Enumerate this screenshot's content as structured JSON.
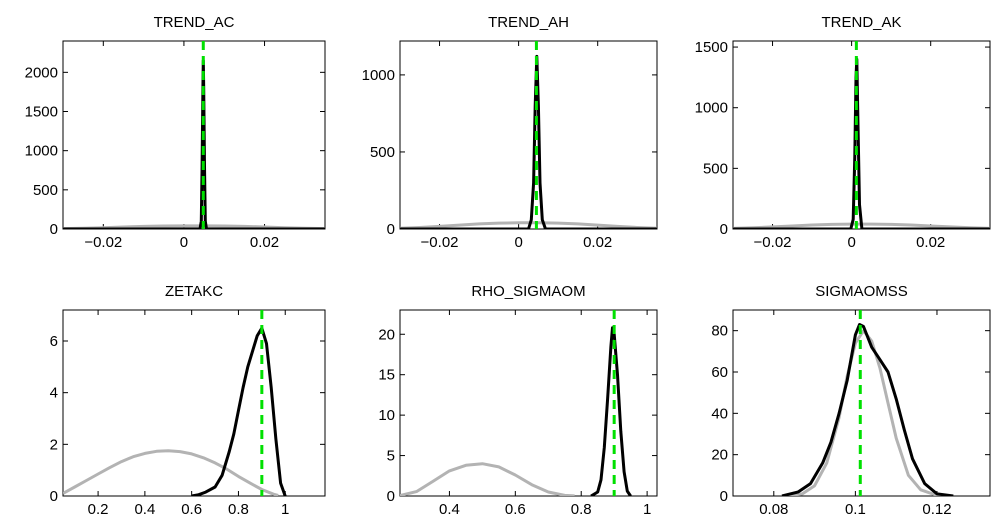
{
  "chart_data": [
    {
      "type": "line",
      "title": "TREND_AC",
      "xlim": [
        -0.03,
        0.035
      ],
      "ylim": [
        0,
        2400
      ],
      "xticks": [
        {
          "v": -0.02,
          "label": "−0.02"
        },
        {
          "v": 0,
          "label": "0"
        },
        {
          "v": 0.02,
          "label": "0.02"
        }
      ],
      "yticks": [
        {
          "v": 0,
          "label": "0"
        },
        {
          "v": 500,
          "label": "500"
        },
        {
          "v": 1000,
          "label": "1000"
        },
        {
          "v": 1500,
          "label": "1500"
        },
        {
          "v": 2000,
          "label": "2000"
        }
      ],
      "mode_line": 0.0048,
      "prior": {
        "color": "#b3b3b3",
        "x": [
          -0.03,
          -0.025,
          -0.02,
          -0.015,
          -0.01,
          -0.005,
          0,
          0.005,
          0.01,
          0.015,
          0.02,
          0.025,
          0.03,
          0.035
        ],
        "y": [
          5,
          10,
          17,
          25,
          33,
          38,
          40,
          40,
          38,
          33,
          25,
          17,
          10,
          5
        ]
      },
      "posterior": {
        "color": "#000000",
        "x": [
          -0.03,
          0.004,
          0.0043,
          0.0045,
          0.0047,
          0.0048,
          0.0049,
          0.0051,
          0.0053,
          0.0056,
          0.035
        ],
        "y": [
          0,
          0,
          100,
          800,
          1800,
          2150,
          1800,
          800,
          100,
          0,
          0
        ]
      }
    },
    {
      "type": "line",
      "title": "TREND_AH",
      "xlim": [
        -0.03,
        0.035
      ],
      "ylim": [
        0,
        1220
      ],
      "xticks": [
        {
          "v": -0.02,
          "label": "−0.02"
        },
        {
          "v": 0,
          "label": "0"
        },
        {
          "v": 0.02,
          "label": "0.02"
        }
      ],
      "yticks": [
        {
          "v": 0,
          "label": "0"
        },
        {
          "v": 500,
          "label": "500"
        },
        {
          "v": 1000,
          "label": "1000"
        }
      ],
      "mode_line": 0.0045,
      "prior": {
        "color": "#b3b3b3",
        "x": [
          -0.03,
          -0.025,
          -0.02,
          -0.015,
          -0.01,
          -0.005,
          0,
          0.005,
          0.01,
          0.015,
          0.02,
          0.025,
          0.03,
          0.035
        ],
        "y": [
          5,
          10,
          17,
          25,
          33,
          38,
          40,
          40,
          38,
          33,
          25,
          17,
          10,
          5
        ]
      },
      "posterior": {
        "color": "#000000",
        "x": [
          -0.03,
          0.0025,
          0.0032,
          0.0038,
          0.0042,
          0.0046,
          0.005,
          0.0054,
          0.006,
          0.0068,
          0.035
        ],
        "y": [
          0,
          0,
          60,
          300,
          800,
          1120,
          800,
          300,
          60,
          0,
          0
        ]
      }
    },
    {
      "type": "line",
      "title": "TREND_AK",
      "xlim": [
        -0.03,
        0.035
      ],
      "ylim": [
        0,
        1550
      ],
      "xticks": [
        {
          "v": -0.02,
          "label": "−0.02"
        },
        {
          "v": 0,
          "label": "0"
        },
        {
          "v": 0.02,
          "label": "0.02"
        }
      ],
      "yticks": [
        {
          "v": 0,
          "label": "0"
        },
        {
          "v": 500,
          "label": "500"
        },
        {
          "v": 1000,
          "label": "1000"
        },
        {
          "v": 1500,
          "label": "1500"
        }
      ],
      "mode_line": 0.0012,
      "prior": {
        "color": "#b3b3b3",
        "x": [
          -0.03,
          -0.025,
          -0.02,
          -0.015,
          -0.01,
          -0.005,
          0,
          0.005,
          0.01,
          0.015,
          0.02,
          0.025,
          0.03,
          0.035
        ],
        "y": [
          5,
          10,
          17,
          25,
          33,
          38,
          40,
          40,
          38,
          33,
          25,
          17,
          10,
          5
        ]
      },
      "posterior": {
        "color": "#000000",
        "x": [
          -0.03,
          -0.0002,
          0.0004,
          0.0008,
          0.0011,
          0.0013,
          0.0016,
          0.002,
          0.0026,
          0.035
        ],
        "y": [
          0,
          0,
          80,
          600,
          1250,
          1400,
          900,
          200,
          0,
          0
        ]
      }
    },
    {
      "type": "line",
      "title": "ZETAKC",
      "xlim": [
        0.05,
        1.17
      ],
      "ylim": [
        0,
        7.2
      ],
      "xticks": [
        {
          "v": 0.2,
          "label": "0.2"
        },
        {
          "v": 0.4,
          "label": "0.4"
        },
        {
          "v": 0.6,
          "label": "0.6"
        },
        {
          "v": 0.8,
          "label": "0.8"
        },
        {
          "v": 1,
          "label": "1"
        }
      ],
      "yticks": [
        {
          "v": 0,
          "label": "0"
        },
        {
          "v": 2,
          "label": "2"
        },
        {
          "v": 4,
          "label": "4"
        },
        {
          "v": 6,
          "label": "6"
        }
      ],
      "mode_line": 0.9,
      "prior": {
        "color": "#b3b3b3",
        "x": [
          0.05,
          0.1,
          0.15,
          0.2,
          0.25,
          0.3,
          0.35,
          0.4,
          0.45,
          0.5,
          0.55,
          0.6,
          0.65,
          0.7,
          0.75,
          0.8,
          0.85,
          0.9,
          0.95,
          0.97
        ],
        "y": [
          0.1,
          0.35,
          0.6,
          0.85,
          1.1,
          1.33,
          1.52,
          1.65,
          1.73,
          1.75,
          1.72,
          1.63,
          1.48,
          1.28,
          1.04,
          0.76,
          0.5,
          0.25,
          0.07,
          0.02
        ]
      },
      "posterior": {
        "color": "#000000",
        "x": [
          0.6,
          0.63,
          0.66,
          0.7,
          0.73,
          0.76,
          0.78,
          0.8,
          0.82,
          0.84,
          0.86,
          0.88,
          0.9,
          0.92,
          0.94,
          0.96,
          0.98,
          1.0
        ],
        "y": [
          0,
          0.05,
          0.15,
          0.35,
          0.8,
          1.7,
          2.4,
          3.3,
          4.2,
          5.0,
          5.6,
          6.2,
          6.5,
          5.9,
          4.2,
          2.2,
          0.5,
          0
        ]
      }
    },
    {
      "type": "line",
      "title": "RHO_SIGMAOM",
      "xlim": [
        0.25,
        1.03
      ],
      "ylim": [
        0,
        23
      ],
      "xticks": [
        {
          "v": 0.4,
          "label": "0.4"
        },
        {
          "v": 0.6,
          "label": "0.6"
        },
        {
          "v": 0.8,
          "label": "0.8"
        },
        {
          "v": 1,
          "label": "1"
        }
      ],
      "yticks": [
        {
          "v": 0,
          "label": "0"
        },
        {
          "v": 5,
          "label": "5"
        },
        {
          "v": 10,
          "label": "10"
        },
        {
          "v": 15,
          "label": "15"
        },
        {
          "v": 20,
          "label": "20"
        }
      ],
      "mode_line": 0.9,
      "prior": {
        "color": "#b3b3b3",
        "x": [
          0.25,
          0.3,
          0.35,
          0.4,
          0.45,
          0.5,
          0.55,
          0.6,
          0.65,
          0.7,
          0.75,
          0.78
        ],
        "y": [
          0.05,
          0.55,
          1.8,
          3.1,
          3.8,
          4.0,
          3.6,
          2.6,
          1.4,
          0.5,
          0.08,
          0.01
        ]
      },
      "posterior": {
        "color": "#000000",
        "x": [
          0.83,
          0.85,
          0.86,
          0.87,
          0.88,
          0.89,
          0.895,
          0.9,
          0.91,
          0.92,
          0.93,
          0.94,
          0.95
        ],
        "y": [
          0,
          0.5,
          2,
          6,
          12,
          18.5,
          20.8,
          20,
          15,
          8,
          3,
          0.6,
          0
        ]
      }
    },
    {
      "type": "line",
      "title": "SIGMAOMSS",
      "xlim": [
        0.07,
        0.133
      ],
      "ylim": [
        0,
        90
      ],
      "xticks": [
        {
          "v": 0.08,
          "label": "0.08"
        },
        {
          "v": 0.1,
          "label": "0.1"
        },
        {
          "v": 0.12,
          "label": "0.12"
        }
      ],
      "yticks": [
        {
          "v": 0,
          "label": "0"
        },
        {
          "v": 20,
          "label": "20"
        },
        {
          "v": 40,
          "label": "40"
        },
        {
          "v": 60,
          "label": "60"
        },
        {
          "v": 80,
          "label": "80"
        }
      ],
      "mode_line": 0.1012,
      "prior": {
        "color": "#b3b3b3",
        "x": [
          0.083,
          0.087,
          0.09,
          0.093,
          0.096,
          0.098,
          0.1,
          0.102,
          0.104,
          0.106,
          0.108,
          0.11,
          0.113,
          0.116,
          0.12,
          0.123
        ],
        "y": [
          0,
          1,
          5,
          16,
          38,
          58,
          74,
          80,
          75,
          62,
          45,
          28,
          10,
          3,
          0.3,
          0
        ]
      },
      "posterior": {
        "color": "#000000",
        "x": [
          0.082,
          0.086,
          0.089,
          0.092,
          0.094,
          0.096,
          0.098,
          0.1,
          0.101,
          0.102,
          0.104,
          0.106,
          0.108,
          0.11,
          0.112,
          0.114,
          0.117,
          0.12,
          0.124
        ],
        "y": [
          0,
          2,
          6,
          16,
          26,
          40,
          56,
          78,
          83,
          82,
          72,
          66,
          60,
          47,
          32,
          18,
          6,
          1,
          0
        ]
      }
    }
  ]
}
